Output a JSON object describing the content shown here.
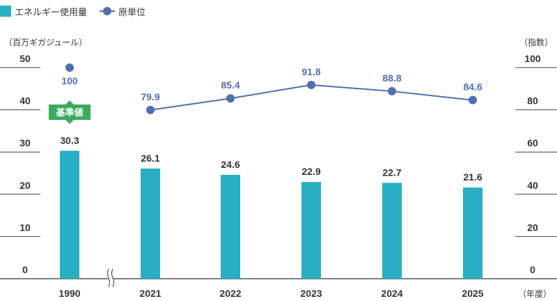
{
  "legend": {
    "bar_label": "エネルギー使用量",
    "line_label": "原単位"
  },
  "axes": {
    "left_unit": "（百万ギガジュール）",
    "right_unit": "（指数）",
    "x_unit": "（年度）"
  },
  "badge": "基準値",
  "colors": {
    "bar": "#29afc4",
    "line": "#4f6fb3",
    "badge": "#3aaa5c",
    "value_label": "#333333",
    "line_label": "#4f6fb3"
  },
  "chart_data": {
    "type": "bar",
    "categories": [
      "1990",
      "2021",
      "2022",
      "2023",
      "2024",
      "2025"
    ],
    "series": [
      {
        "name": "エネルギー使用量",
        "type": "bar",
        "axis": "left",
        "values": [
          30.3,
          26.1,
          24.6,
          22.9,
          22.7,
          21.6
        ],
        "labels": [
          "30.3",
          "26.1",
          "24.6",
          "22.9",
          "22.7",
          "21.6"
        ]
      },
      {
        "name": "原単位",
        "type": "line",
        "axis": "right",
        "values": [
          100,
          79.9,
          85.4,
          91.8,
          88.8,
          84.6
        ],
        "labels": [
          "100",
          "79.9",
          "85.4",
          "91.8",
          "88.8",
          "84.6"
        ],
        "connected_from_index": 1
      }
    ],
    "left_axis": {
      "ylim": [
        0,
        50
      ],
      "ticks": [
        "0",
        "10",
        "20",
        "30",
        "40",
        "50"
      ]
    },
    "right_axis": {
      "ylim": [
        0,
        100
      ],
      "ticks": [
        "0",
        "20",
        "40",
        "60",
        "80",
        "100"
      ]
    },
    "axis_break_between": [
      "1990",
      "2021"
    ],
    "baseline_category": "1990",
    "grid": true,
    "legend_position": "top-left"
  }
}
